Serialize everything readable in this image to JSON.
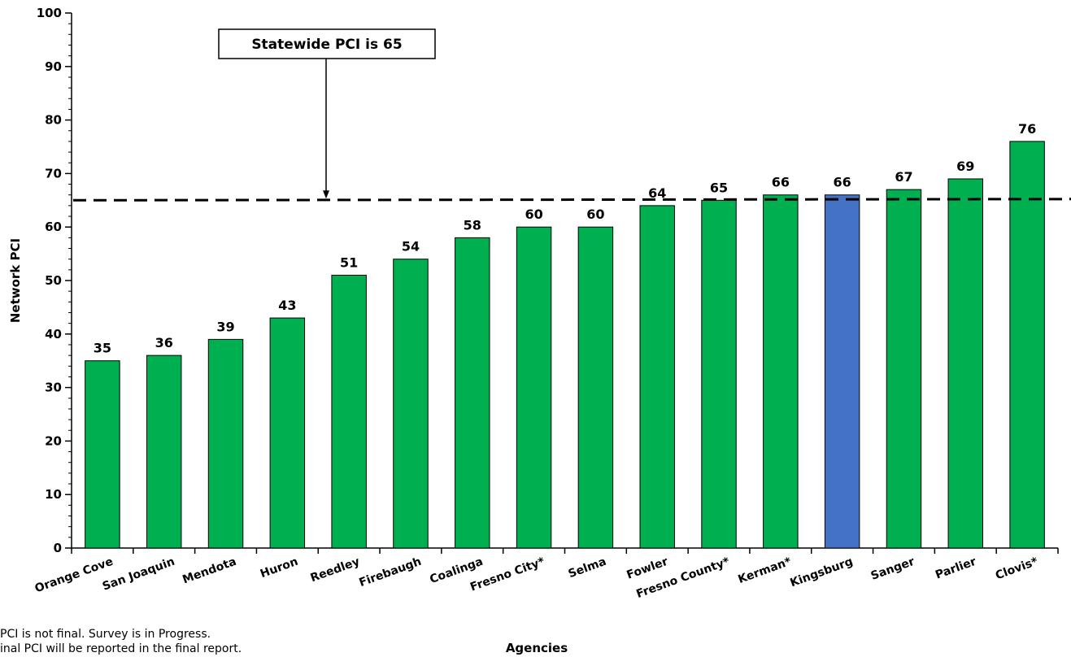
{
  "chart_data": {
    "type": "bar",
    "xlabel": "Agencies",
    "ylabel": "Network PCI",
    "ylim": [
      0,
      100
    ],
    "yticks": [
      0,
      10,
      20,
      30,
      40,
      50,
      60,
      70,
      80,
      90,
      100
    ],
    "categories": [
      "Orange Cove",
      "San Joaquin",
      "Mendota",
      "Huron",
      "Reedley",
      "Firebaugh",
      "Coalinga",
      "Fresno City*",
      "Selma",
      "Fowler",
      "Fresno County*",
      "Kerman*",
      "Kingsburg",
      "Sanger",
      "Parlier",
      "Clovis*"
    ],
    "values": [
      35,
      36,
      39,
      43,
      51,
      54,
      58,
      60,
      60,
      64,
      65,
      66,
      66,
      67,
      69,
      76
    ],
    "highlight_category": "Kingsburg",
    "colors": {
      "bar": "#00B050",
      "highlight": "#4472C4",
      "outline": "#000000"
    },
    "reference_line": {
      "value": 65,
      "style": "dashed"
    },
    "annotation": "Statewide PCI is 65",
    "grid": false,
    "data_labels": true
  },
  "footnotes": [
    "PCI is not final. Survey is in Progress.",
    "inal PCI will be reported in the final report."
  ]
}
